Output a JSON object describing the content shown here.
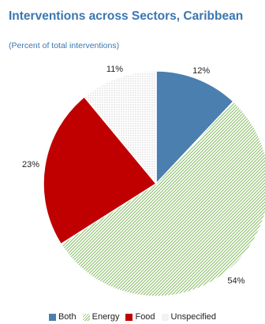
{
  "title": "Interventions across Sectors, Caribbean",
  "subtitle": "(Percent of total interventions)",
  "chart_data": {
    "type": "pie",
    "title": "Interventions across Sectors, Caribbean",
    "subtitle": "(Percent of total interventions)",
    "start": "12 o'clock, clockwise",
    "slices": [
      {
        "name": "Both",
        "value": 12,
        "label": "12%",
        "color": "#4a7fb0",
        "fill": "solid"
      },
      {
        "name": "Energy",
        "value": 54,
        "label": "54%",
        "color": "#8bbf6a",
        "fill": "diagonal-hatch"
      },
      {
        "name": "Food",
        "value": 23,
        "label": "23%",
        "color": "#c00000",
        "fill": "solid"
      },
      {
        "name": "Unspecified",
        "value": 11,
        "label": "11%",
        "color": "#d0d0d0",
        "fill": "dotted"
      }
    ],
    "legend_position": "bottom"
  }
}
